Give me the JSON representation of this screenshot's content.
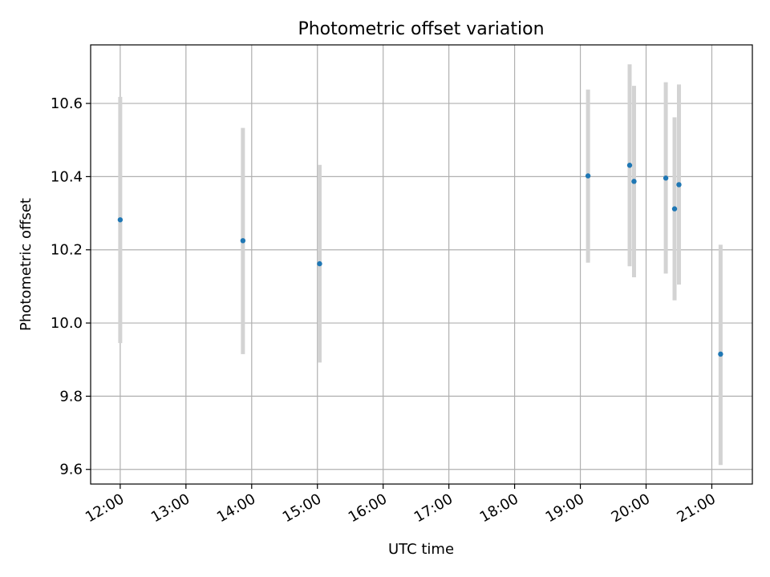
{
  "chart_data": {
    "type": "scatter",
    "title": "Photometric offset variation",
    "xlabel": "UTC time",
    "ylabel": "Photometric offset",
    "x_ticks": [
      "12:00",
      "13:00",
      "14:00",
      "15:00",
      "16:00",
      "17:00",
      "18:00",
      "19:00",
      "20:00",
      "21:00"
    ],
    "y_ticks": [
      "9.6",
      "9.8",
      "10.0",
      "10.2",
      "10.4",
      "10.6"
    ],
    "xlim": [
      "11:33",
      "21:37"
    ],
    "ylim": [
      9.56,
      10.76
    ],
    "grid": true,
    "series": [
      {
        "points": [
          {
            "x": "12:00",
            "y": 10.282,
            "err_low": 9.945,
            "err_high": 10.618
          },
          {
            "x": "13:52",
            "y": 10.225,
            "err_low": 9.915,
            "err_high": 10.533
          },
          {
            "x": "15:02",
            "y": 10.162,
            "err_low": 9.892,
            "err_high": 10.432
          },
          {
            "x": "19:07",
            "y": 10.402,
            "err_low": 10.165,
            "err_high": 10.638
          },
          {
            "x": "19:45",
            "y": 10.431,
            "err_low": 10.155,
            "err_high": 10.707
          },
          {
            "x": "19:49",
            "y": 10.387,
            "err_low": 10.125,
            "err_high": 10.648
          },
          {
            "x": "20:18",
            "y": 10.396,
            "err_low": 10.135,
            "err_high": 10.658
          },
          {
            "x": "20:26",
            "y": 10.312,
            "err_low": 10.062,
            "err_high": 10.562
          },
          {
            "x": "20:30",
            "y": 10.378,
            "err_low": 10.105,
            "err_high": 10.652
          },
          {
            "x": "21:08",
            "y": 9.915,
            "err_low": 9.612,
            "err_high": 10.214
          }
        ]
      }
    ]
  },
  "colors": {
    "point": "#1f77b4",
    "errorbar": "#d3d3d3",
    "grid": "#b0b0b0",
    "axis": "#000000"
  }
}
